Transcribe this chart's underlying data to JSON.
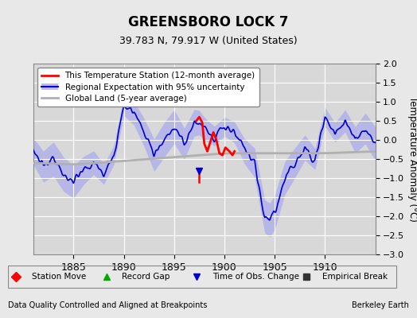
{
  "title": "GREENSBORO LOCK 7",
  "subtitle": "39.783 N, 79.917 W (United States)",
  "xlabel_left": "Data Quality Controlled and Aligned at Breakpoints",
  "xlabel_right": "Berkeley Earth",
  "ylabel": "Temperature Anomaly (°C)",
  "xmin": 1881,
  "xmax": 1915,
  "ymin": -3,
  "ymax": 2,
  "yticks": [
    -3,
    -2.5,
    -2,
    -1.5,
    -1,
    -0.5,
    0,
    0.5,
    1,
    1.5,
    2
  ],
  "xticks": [
    1885,
    1890,
    1895,
    1900,
    1905,
    1910
  ],
  "bg_color": "#e8e8e8",
  "plot_bg_color": "#d8d8d8",
  "grid_color": "#ffffff",
  "regional_line_color": "#0000cc",
  "regional_band_color": "#aaaaee",
  "station_line_color": "#ff0000",
  "global_line_color": "#aaaaaa",
  "legend_items": [
    {
      "label": "This Temperature Station (12-month average)",
      "color": "#ff0000",
      "lw": 2
    },
    {
      "label": "Regional Expectation with 95% uncertainty",
      "color": "#0000cc",
      "lw": 2
    },
    {
      "label": "Global Land (5-year average)",
      "color": "#aaaaaa",
      "lw": 2
    }
  ],
  "bottom_legend": [
    {
      "label": "Station Move",
      "marker": "D",
      "color": "#ff0000"
    },
    {
      "label": "Record Gap",
      "marker": "^",
      "color": "#00aa00"
    },
    {
      "label": "Time of Obs. Change",
      "marker": "v",
      "color": "#0000cc"
    },
    {
      "label": "Empirical Break",
      "marker": "s",
      "color": "#333333"
    }
  ],
  "red_line_segment": [
    [
      1897.5,
      -1.1
    ],
    [
      1897.5,
      -0.85
    ]
  ],
  "obs_change_marker_x": 1897.5,
  "obs_change_marker_y": -0.85
}
